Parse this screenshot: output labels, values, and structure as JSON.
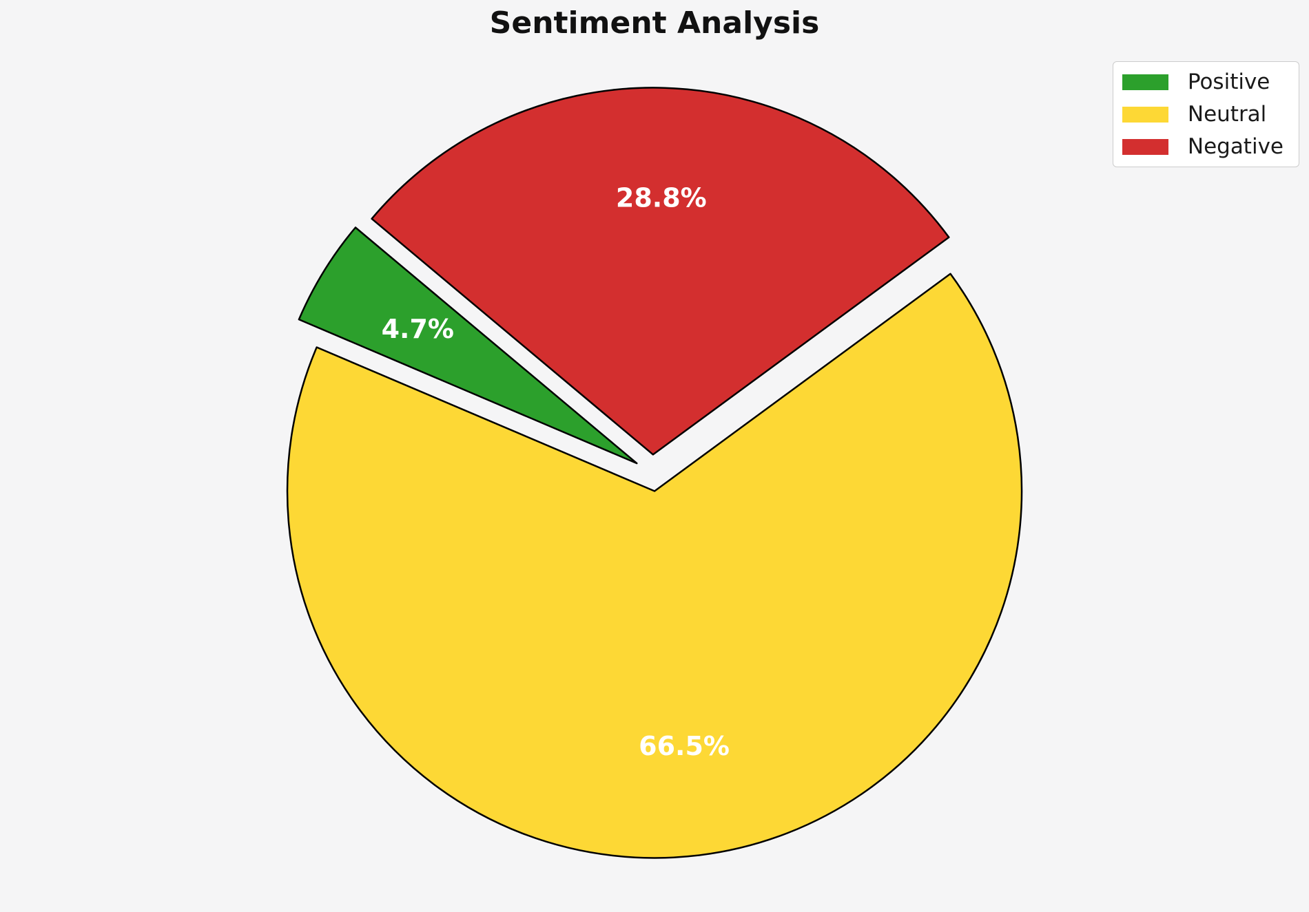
{
  "figure": {
    "background": "#f5f5f6"
  },
  "chart_data": {
    "type": "pie",
    "title": "Sentiment Analysis",
    "categories": [
      "Positive",
      "Neutral",
      "Negative"
    ],
    "values": [
      4.7,
      66.5,
      28.8
    ],
    "labels_pct": [
      "4.7%",
      "66.5%",
      "28.8%"
    ],
    "colors": [
      "#2ca02c",
      "#fdd835",
      "#d32f2f"
    ],
    "edge_color": "#000000",
    "pct_label_color": "#ffffff",
    "start_angle": 140,
    "direction": "counterclockwise",
    "explode": [
      0.05,
      0.05,
      0.05
    ],
    "pct_distance": 0.7,
    "legend": {
      "position": "upper right",
      "entries": [
        "Positive",
        "Neutral",
        "Negative"
      ]
    }
  }
}
